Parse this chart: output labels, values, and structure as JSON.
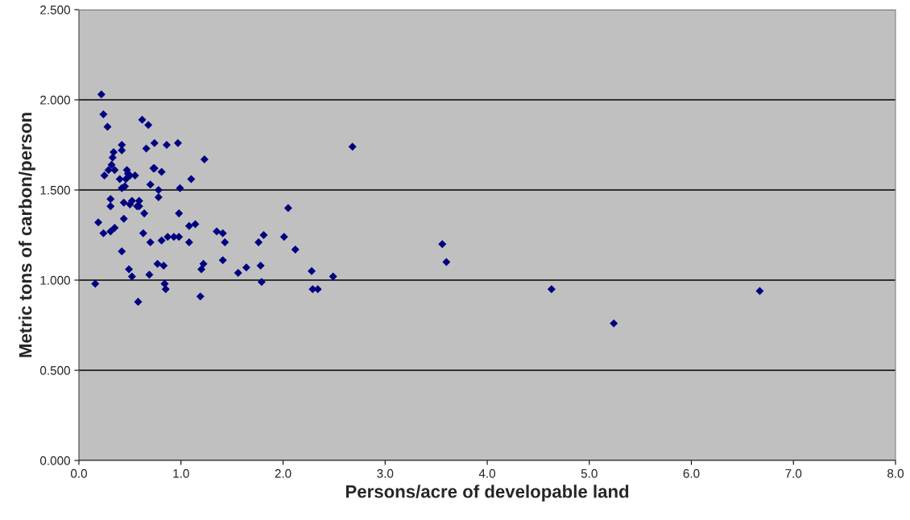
{
  "chart_data": {
    "type": "scatter",
    "xlabel": "Persons/acre of developable land",
    "ylabel": "Metric tons of carbon/person",
    "xlim": [
      0,
      8
    ],
    "ylim": [
      0,
      2.5
    ],
    "xticks": [
      {
        "value": 0,
        "label": "0.0"
      },
      {
        "value": 1,
        "label": "1.0"
      },
      {
        "value": 2,
        "label": "2.0"
      },
      {
        "value": 3,
        "label": "3.0"
      },
      {
        "value": 4,
        "label": "4.0"
      },
      {
        "value": 5,
        "label": "5.0"
      },
      {
        "value": 6,
        "label": "6.0"
      },
      {
        "value": 7,
        "label": "7.0"
      },
      {
        "value": 8,
        "label": "8.0"
      }
    ],
    "yticks": [
      {
        "value": 0,
        "label": "0.000"
      },
      {
        "value": 0.5,
        "label": "0.500"
      },
      {
        "value": 1,
        "label": "1.000"
      },
      {
        "value": 1.5,
        "label": "1.500"
      },
      {
        "value": 2,
        "label": "2.000"
      },
      {
        "value": 2.5,
        "label": "2.500"
      }
    ],
    "grid": "y",
    "marker": "diamond",
    "legend": false,
    "series": [
      {
        "color": "#000080",
        "x": [
          0.22,
          0.24,
          0.28,
          0.62,
          0.68,
          0.42,
          0.42,
          0.34,
          0.33,
          0.66,
          0.74,
          0.86,
          0.97,
          1.23,
          0.32,
          0.29,
          0.35,
          0.25,
          0.47,
          0.48,
          0.5,
          0.55,
          0.4,
          0.46,
          0.73,
          0.74,
          0.81,
          1.1,
          0.42,
          0.45,
          0.7,
          0.78,
          0.99,
          0.31,
          0.31,
          0.78,
          0.44,
          0.5,
          0.52,
          0.59,
          0.57,
          0.59,
          0.64,
          0.98,
          0.19,
          0.44,
          1.08,
          1.14,
          1.35,
          0.24,
          0.31,
          0.35,
          0.63,
          0.7,
          0.81,
          0.87,
          0.93,
          0.98,
          1.08,
          0.42,
          0.49,
          0.52,
          0.77,
          0.83,
          0.69,
          1.22,
          1.2,
          0.16,
          0.84,
          0.85,
          0.58,
          1.19,
          2.68,
          2.05,
          1.41,
          1.43,
          1.41,
          1.81,
          1.76,
          2.01,
          2.12,
          1.78,
          1.56,
          1.64,
          1.79,
          2.28,
          2.49,
          2.29,
          2.34,
          3.56,
          3.6,
          4.63,
          5.24,
          6.67
        ],
        "values": [
          2.03,
          1.92,
          1.85,
          1.89,
          1.86,
          1.75,
          1.72,
          1.71,
          1.68,
          1.73,
          1.76,
          1.75,
          1.76,
          1.67,
          1.64,
          1.61,
          1.61,
          1.58,
          1.61,
          1.59,
          1.58,
          1.58,
          1.56,
          1.56,
          1.62,
          1.62,
          1.6,
          1.56,
          1.51,
          1.52,
          1.53,
          1.5,
          1.51,
          1.45,
          1.41,
          1.46,
          1.43,
          1.42,
          1.44,
          1.44,
          1.41,
          1.41,
          1.37,
          1.37,
          1.32,
          1.34,
          1.3,
          1.31,
          1.27,
          1.26,
          1.27,
          1.29,
          1.26,
          1.21,
          1.22,
          1.24,
          1.24,
          1.24,
          1.21,
          1.16,
          1.06,
          1.02,
          1.09,
          1.08,
          1.03,
          1.09,
          1.06,
          0.98,
          0.98,
          0.95,
          0.88,
          0.91,
          1.74,
          1.4,
          1.26,
          1.21,
          1.11,
          1.25,
          1.21,
          1.24,
          1.17,
          1.08,
          1.04,
          1.07,
          0.99,
          1.05,
          1.02,
          0.95,
          0.95,
          1.2,
          1.1,
          0.95,
          0.76,
          0.94
        ]
      }
    ]
  }
}
